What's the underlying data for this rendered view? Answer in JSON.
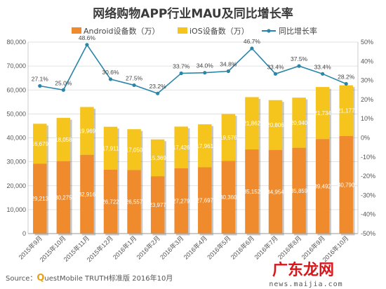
{
  "chart_data": {
    "type": "bar",
    "stacked": true,
    "title": "网络购物APP行业MAU及同比增长率",
    "categories": [
      "2015年9月",
      "2015年10月",
      "2015年11月",
      "2015年12月",
      "2016年1月",
      "2016年2月",
      "2016年3月",
      "2016年4月",
      "2016年5月",
      "2016年6月",
      "2016年7月",
      "2016年8月",
      "2016年9月",
      "2016年10月"
    ],
    "series": [
      {
        "name": "Android设备数（万）",
        "values": [
          29213,
          30275,
          32916,
          26722,
          26557,
          23977,
          27279,
          27697,
          30360,
          35152,
          34954,
          35859,
          39492,
          40790
        ],
        "color": "#ef8b2c"
      },
      {
        "name": "iOS设备数（万）",
        "values": [
          16679,
          18058,
          19969,
          17911,
          17050,
          15369,
          17426,
          17961,
          19576,
          21862,
          20806,
          20940,
          21734,
          21177
        ],
        "color": "#f6c51d"
      },
      {
        "name": "同比增长率",
        "type": "line",
        "axis": "right",
        "values": [
          27.1,
          25.0,
          48.6,
          30.6,
          27.5,
          23.2,
          33.7,
          34.0,
          34.8,
          46.7,
          33.4,
          37.5,
          33.4,
          28.2
        ],
        "labels": [
          "27.1%",
          "25.0%",
          "48.6%",
          "30.6%",
          "27.5%",
          "23.2%",
          "33.7%",
          "34.0%",
          "34.8%",
          "46.7%",
          "33.4%",
          "37.5%",
          "33.4%",
          "28.2%"
        ],
        "color": "#2a86a8"
      }
    ],
    "ylim": [
      0,
      80000
    ],
    "y_ticks": [
      "0",
      "10,000",
      "20,000",
      "30,000",
      "40,000",
      "50,000",
      "60,000",
      "70,000",
      "80,000"
    ],
    "y2lim": [
      -50,
      50
    ],
    "y2_ticks": [
      "-50%",
      "-40%",
      "-30%",
      "-20%",
      "-10%",
      "0%",
      "10%",
      "20%",
      "30%",
      "40%",
      "50%"
    ],
    "grid": true,
    "legend_position": "top"
  },
  "source": {
    "prefix": "Source：",
    "brand_initial": "Q",
    "brand_rest": "uestMobile TRUTH标准版 2016年10月"
  },
  "watermark": {
    "title": "广东龙网",
    "url": "news.maijia.com"
  },
  "colors": {
    "android": "#ef8b2c",
    "ios": "#f6c51d",
    "growth": "#2a86a8",
    "grid": "#d9d9d9",
    "watermark_red": "#d8171c"
  }
}
